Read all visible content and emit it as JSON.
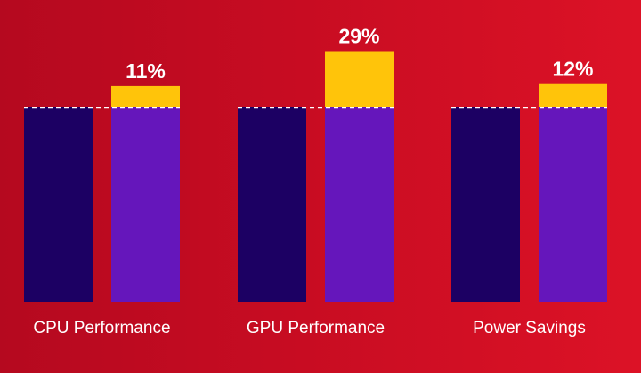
{
  "colors": {
    "baseline_bar": "#1c0063",
    "improved_bar": "#6516bb",
    "improvement_increment": "#ffc40a",
    "reference_line": "#ffffff"
  },
  "chart_data": {
    "type": "bar",
    "title": "",
    "xlabel": "",
    "ylabel": "",
    "categories": [
      "CPU Performance",
      "GPU Performance",
      "Power Savings"
    ],
    "baseline": [
      100,
      100,
      100
    ],
    "increase_percent": [
      11,
      29,
      12
    ],
    "increase_labels": [
      "11%",
      "29%",
      "12%"
    ],
    "ylim": [
      0,
      135
    ],
    "grid": false,
    "legend": "none"
  }
}
